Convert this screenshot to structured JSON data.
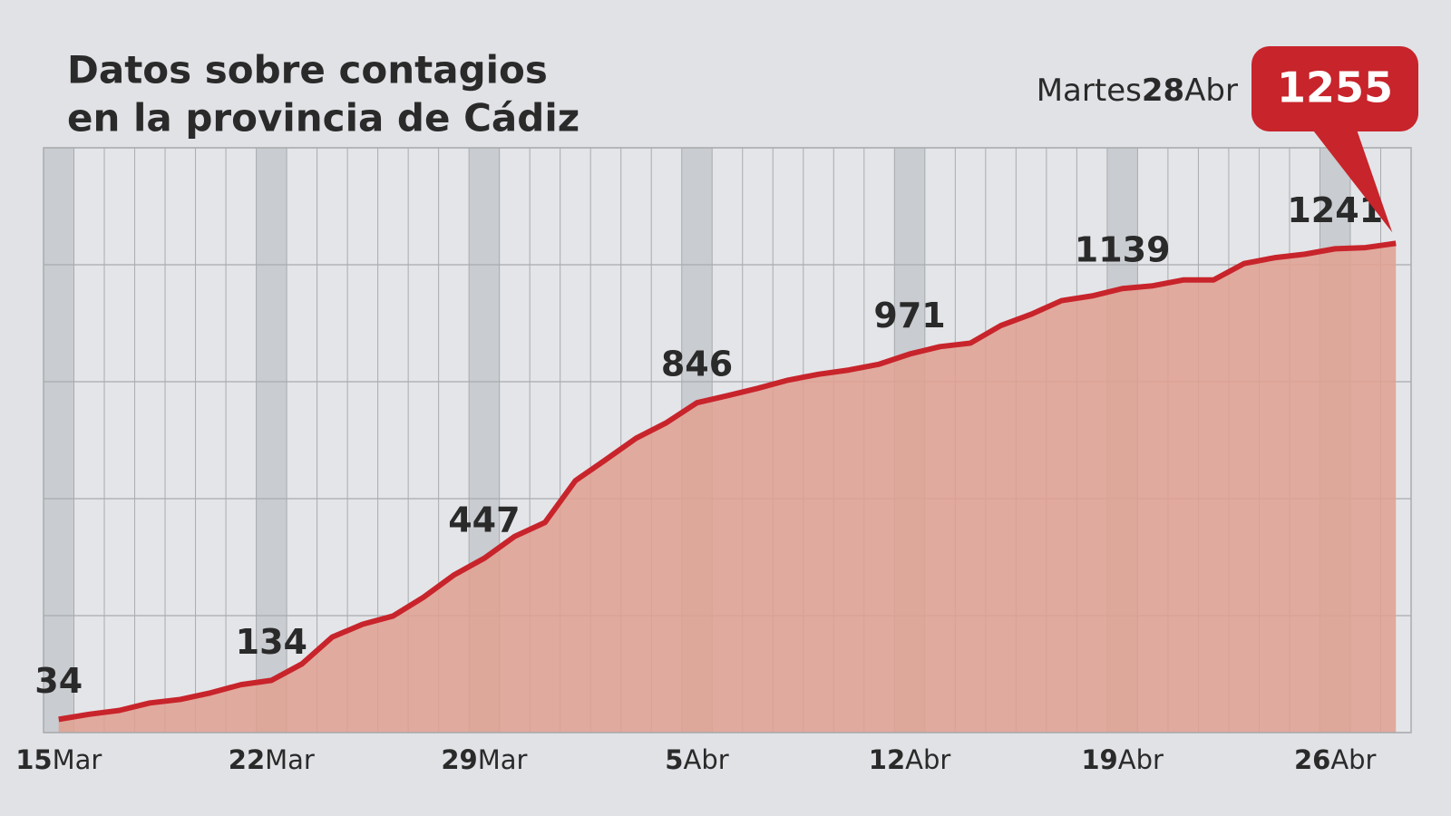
{
  "chart_data": {
    "type": "area",
    "title": [
      "Datos sobre contagios",
      "en la provincia de Cádiz"
    ],
    "categories": [
      "15Mar",
      null,
      null,
      null,
      null,
      null,
      null,
      "22Mar",
      null,
      null,
      null,
      null,
      null,
      null,
      "29Mar",
      null,
      null,
      null,
      null,
      null,
      null,
      "5Abr",
      null,
      null,
      null,
      null,
      null,
      null,
      "12Abr",
      null,
      null,
      null,
      null,
      null,
      null,
      "19Abr",
      null,
      null,
      null,
      null,
      null,
      null,
      "26Abr",
      null,
      null
    ],
    "values": [
      34,
      47,
      57,
      76,
      85,
      102,
      123,
      134,
      176,
      245,
      278,
      299,
      347,
      404,
      447,
      503,
      539,
      646,
      700,
      755,
      795,
      846,
      864,
      883,
      904,
      919,
      930,
      945,
      971,
      990,
      999,
      1044,
      1073,
      1108,
      1120,
      1139,
      1146,
      1161,
      1161,
      1203,
      1218,
      1227,
      1241,
      1244,
      1255
    ],
    "highlight_label": "Martes28Abr",
    "color": "#c8242b",
    "fill": "#e0a090",
    "ylim": [
      0,
      1500
    ],
    "yticks": [
      0,
      300,
      600,
      900,
      1200,
      1500
    ],
    "grid": true
  }
}
